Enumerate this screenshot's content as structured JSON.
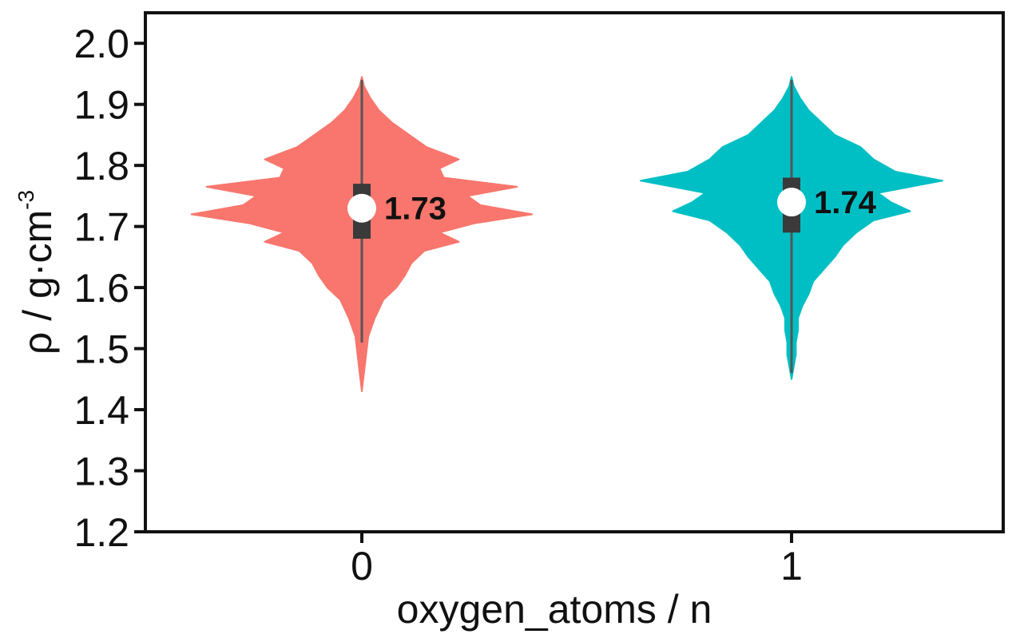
{
  "chart_data": {
    "type": "violin",
    "title": "",
    "xlabel": "oxygen_atoms / n",
    "ylabel": {
      "text": "ρ / g·cm",
      "superscript": "-3"
    },
    "ylim": [
      1.2,
      2.05
    ],
    "yticks": [
      "1.2",
      "1.3",
      "1.4",
      "1.5",
      "1.6",
      "1.7",
      "1.8",
      "1.9",
      "2.0"
    ],
    "categories": [
      "0",
      "1"
    ],
    "grid": false,
    "series": [
      {
        "category": "0",
        "color": "#f8766d",
        "median": 1.73,
        "median_label": "1.73",
        "q1": 1.68,
        "q3": 1.77,
        "whisker_low": 1.51,
        "whisker_high": 1.94,
        "density": [
          [
            1.43,
            0.0
          ],
          [
            1.46,
            0.01
          ],
          [
            1.49,
            0.02
          ],
          [
            1.52,
            0.03
          ],
          [
            1.55,
            0.06
          ],
          [
            1.58,
            0.1
          ],
          [
            1.6,
            0.16
          ],
          [
            1.62,
            0.2
          ],
          [
            1.64,
            0.23
          ],
          [
            1.66,
            0.29
          ],
          [
            1.675,
            0.45
          ],
          [
            1.69,
            0.36
          ],
          [
            1.705,
            0.52
          ],
          [
            1.72,
            0.79
          ],
          [
            1.735,
            0.55
          ],
          [
            1.75,
            0.49
          ],
          [
            1.765,
            0.72
          ],
          [
            1.78,
            0.38
          ],
          [
            1.795,
            0.36
          ],
          [
            1.81,
            0.45
          ],
          [
            1.83,
            0.3
          ],
          [
            1.85,
            0.22
          ],
          [
            1.87,
            0.14
          ],
          [
            1.89,
            0.08
          ],
          [
            1.91,
            0.04
          ],
          [
            1.93,
            0.01
          ],
          [
            1.945,
            0.0
          ]
        ]
      },
      {
        "category": "1",
        "color": "#00bfc4",
        "median": 1.74,
        "median_label": "1.74",
        "q1": 1.69,
        "q3": 1.78,
        "whisker_low": 1.46,
        "whisker_high": 1.94,
        "density": [
          [
            1.45,
            0.0
          ],
          [
            1.47,
            0.01
          ],
          [
            1.49,
            0.02
          ],
          [
            1.51,
            0.02
          ],
          [
            1.53,
            0.03
          ],
          [
            1.55,
            0.03
          ],
          [
            1.57,
            0.05
          ],
          [
            1.59,
            0.08
          ],
          [
            1.61,
            0.1
          ],
          [
            1.63,
            0.15
          ],
          [
            1.65,
            0.2
          ],
          [
            1.67,
            0.24
          ],
          [
            1.69,
            0.3
          ],
          [
            1.71,
            0.38
          ],
          [
            1.725,
            0.55
          ],
          [
            1.74,
            0.46
          ],
          [
            1.755,
            0.4
          ],
          [
            1.775,
            0.7
          ],
          [
            1.79,
            0.48
          ],
          [
            1.81,
            0.38
          ],
          [
            1.83,
            0.32
          ],
          [
            1.85,
            0.2
          ],
          [
            1.87,
            0.14
          ],
          [
            1.89,
            0.08
          ],
          [
            1.91,
            0.04
          ],
          [
            1.93,
            0.01
          ],
          [
            1.945,
            0.0
          ]
        ]
      }
    ]
  }
}
